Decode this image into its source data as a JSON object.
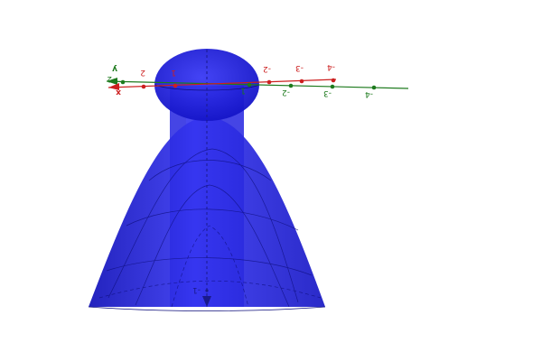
{
  "scene": {
    "surface_color": "#1f1fdc",
    "surface_edge_color": "#1414a8",
    "x_axis_color": "#cc1f1f",
    "y_axis_color": "#1d7a1d",
    "z_axis_color": "#1a1a8c"
  },
  "axes": {
    "x_label": "x",
    "y_label": "y",
    "x_ticks": [
      {
        "text": "2"
      },
      {
        "text": "1"
      },
      {
        "text": "-2"
      },
      {
        "text": "-3"
      },
      {
        "text": "-4"
      }
    ],
    "y_ticks": [
      {
        "text": "2"
      },
      {
        "text": "1"
      },
      {
        "text": "-2"
      },
      {
        "text": "-3"
      },
      {
        "text": "-4"
      }
    ],
    "z_ticks": [
      {
        "text": "-1"
      }
    ]
  }
}
